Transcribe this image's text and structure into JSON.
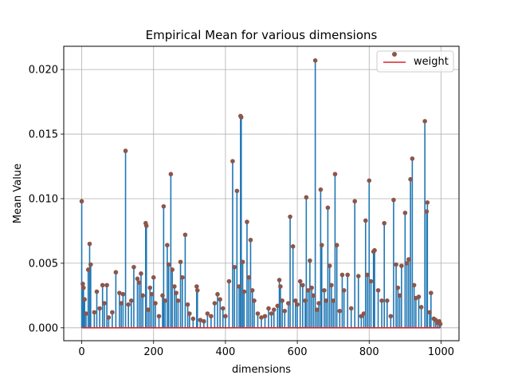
{
  "chart_data": {
    "type": "stem",
    "title": "Empirical Mean for various dimensions",
    "xlabel": "dimensions",
    "ylabel": "Mean Value",
    "xlim": [
      -50,
      1050
    ],
    "ylim": [
      -0.001,
      0.0218
    ],
    "xticks": [
      0,
      200,
      400,
      600,
      800,
      1000
    ],
    "xtick_labels": [
      "0",
      "200",
      "400",
      "600",
      "800",
      "1000"
    ],
    "yticks": [
      0.0,
      0.005,
      0.01,
      0.015,
      0.02
    ],
    "ytick_labels": [
      "0.000",
      "0.005",
      "0.010",
      "0.015",
      "0.020"
    ],
    "grid": true,
    "legend": {
      "position": "top-right",
      "entries": [
        "weight"
      ]
    },
    "colors": {
      "stem": "#1f77b4",
      "marker": "#8c564b",
      "baseline": "#d62728"
    },
    "series": [
      {
        "name": "weight",
        "points": [
          [
            0,
            0.0098
          ],
          [
            3,
            0.0034
          ],
          [
            5,
            0.0031
          ],
          [
            8,
            0.0022
          ],
          [
            12,
            0.0011
          ],
          [
            18,
            0.0045
          ],
          [
            22,
            0.0065
          ],
          [
            25,
            0.0049
          ],
          [
            35,
            0.0012
          ],
          [
            42,
            0.0028
          ],
          [
            50,
            0.0015
          ],
          [
            58,
            0.0033
          ],
          [
            63,
            0.0019
          ],
          [
            70,
            0.0033
          ],
          [
            75,
            0.0008
          ],
          [
            85,
            0.0012
          ],
          [
            95,
            0.0043
          ],
          [
            105,
            0.0027
          ],
          [
            110,
            0.0019
          ],
          [
            115,
            0.0026
          ],
          [
            122,
            0.0137
          ],
          [
            130,
            0.0018
          ],
          [
            138,
            0.0021
          ],
          [
            145,
            0.0047
          ],
          [
            155,
            0.0038
          ],
          [
            160,
            0.0035
          ],
          [
            165,
            0.0042
          ],
          [
            170,
            0.0025
          ],
          [
            178,
            0.0081
          ],
          [
            180,
            0.0079
          ],
          [
            185,
            0.0014
          ],
          [
            190,
            0.0031
          ],
          [
            195,
            0.0026
          ],
          [
            200,
            0.0039
          ],
          [
            205,
            0.0019
          ],
          [
            215,
            0.0009
          ],
          [
            225,
            0.0025
          ],
          [
            228,
            0.0094
          ],
          [
            232,
            0.0021
          ],
          [
            238,
            0.0064
          ],
          [
            242,
            0.0049
          ],
          [
            248,
            0.0119
          ],
          [
            252,
            0.0045
          ],
          [
            258,
            0.0032
          ],
          [
            263,
            0.0027
          ],
          [
            268,
            0.0021
          ],
          [
            275,
            0.0051
          ],
          [
            280,
            0.0039
          ],
          [
            288,
            0.0072
          ],
          [
            295,
            0.0018
          ],
          [
            300,
            0.0011
          ],
          [
            310,
            0.0007
          ],
          [
            320,
            0.0032
          ],
          [
            322,
            0.0029
          ],
          [
            330,
            0.0006
          ],
          [
            340,
            0.0005
          ],
          [
            350,
            0.0011
          ],
          [
            360,
            0.0009
          ],
          [
            370,
            0.0019
          ],
          [
            378,
            0.0026
          ],
          [
            385,
            0.0022
          ],
          [
            393,
            0.0015
          ],
          [
            400,
            0.0009
          ],
          [
            410,
            0.0036
          ],
          [
            420,
            0.0129
          ],
          [
            425,
            0.0047
          ],
          [
            432,
            0.0106
          ],
          [
            438,
            0.0032
          ],
          [
            442,
            0.0164
          ],
          [
            444,
            0.0163
          ],
          [
            448,
            0.0051
          ],
          [
            452,
            0.0028
          ],
          [
            460,
            0.0082
          ],
          [
            465,
            0.0039
          ],
          [
            470,
            0.0068
          ],
          [
            475,
            0.0029
          ],
          [
            480,
            0.0021
          ],
          [
            490,
            0.0011
          ],
          [
            500,
            0.0008
          ],
          [
            510,
            0.0009
          ],
          [
            520,
            0.0015
          ],
          [
            528,
            0.0011
          ],
          [
            535,
            0.0014
          ],
          [
            545,
            0.0017
          ],
          [
            550,
            0.0037
          ],
          [
            553,
            0.0032
          ],
          [
            558,
            0.0021
          ],
          [
            565,
            0.0013
          ],
          [
            575,
            0.0019
          ],
          [
            580,
            0.0086
          ],
          [
            588,
            0.0063
          ],
          [
            595,
            0.0021
          ],
          [
            600,
            0.0018
          ],
          [
            608,
            0.0036
          ],
          [
            615,
            0.0033
          ],
          [
            622,
            0.0021
          ],
          [
            625,
            0.0101
          ],
          [
            630,
            0.0029
          ],
          [
            635,
            0.0052
          ],
          [
            640,
            0.0031
          ],
          [
            645,
            0.0025
          ],
          [
            650,
            0.0207
          ],
          [
            655,
            0.0014
          ],
          [
            660,
            0.0019
          ],
          [
            665,
            0.0107
          ],
          [
            668,
            0.0064
          ],
          [
            675,
            0.0029
          ],
          [
            680,
            0.0021
          ],
          [
            685,
            0.0093
          ],
          [
            690,
            0.0048
          ],
          [
            695,
            0.0033
          ],
          [
            700,
            0.0021
          ],
          [
            705,
            0.0119
          ],
          [
            710,
            0.0064
          ],
          [
            718,
            0.0013
          ],
          [
            725,
            0.0041
          ],
          [
            730,
            0.0029
          ],
          [
            740,
            0.0041
          ],
          [
            750,
            0.0015
          ],
          [
            760,
            0.0098
          ],
          [
            770,
            0.004
          ],
          [
            778,
            0.0009
          ],
          [
            785,
            0.0011
          ],
          [
            790,
            0.0083
          ],
          [
            795,
            0.0041
          ],
          [
            800,
            0.0114
          ],
          [
            805,
            0.0036
          ],
          [
            812,
            0.0059
          ],
          [
            815,
            0.006
          ],
          [
            825,
            0.0029
          ],
          [
            835,
            0.0021
          ],
          [
            842,
            0.0081
          ],
          [
            850,
            0.0021
          ],
          [
            860,
            0.0009
          ],
          [
            868,
            0.0099
          ],
          [
            875,
            0.0049
          ],
          [
            880,
            0.0031
          ],
          [
            885,
            0.0025
          ],
          [
            890,
            0.0048
          ],
          [
            900,
            0.0089
          ],
          [
            905,
            0.005
          ],
          [
            910,
            0.0053
          ],
          [
            915,
            0.0115
          ],
          [
            920,
            0.0131
          ],
          [
            925,
            0.0033
          ],
          [
            930,
            0.0023
          ],
          [
            938,
            0.0024
          ],
          [
            945,
            0.0016
          ],
          [
            955,
            0.016
          ],
          [
            960,
            0.009
          ],
          [
            962,
            0.0097
          ],
          [
            968,
            0.0012
          ],
          [
            972,
            0.0027
          ],
          [
            980,
            0.0007
          ],
          [
            985,
            0.0006
          ],
          [
            990,
            0.0004
          ],
          [
            995,
            0.0005
          ],
          [
            998,
            0.0003
          ]
        ]
      }
    ]
  }
}
